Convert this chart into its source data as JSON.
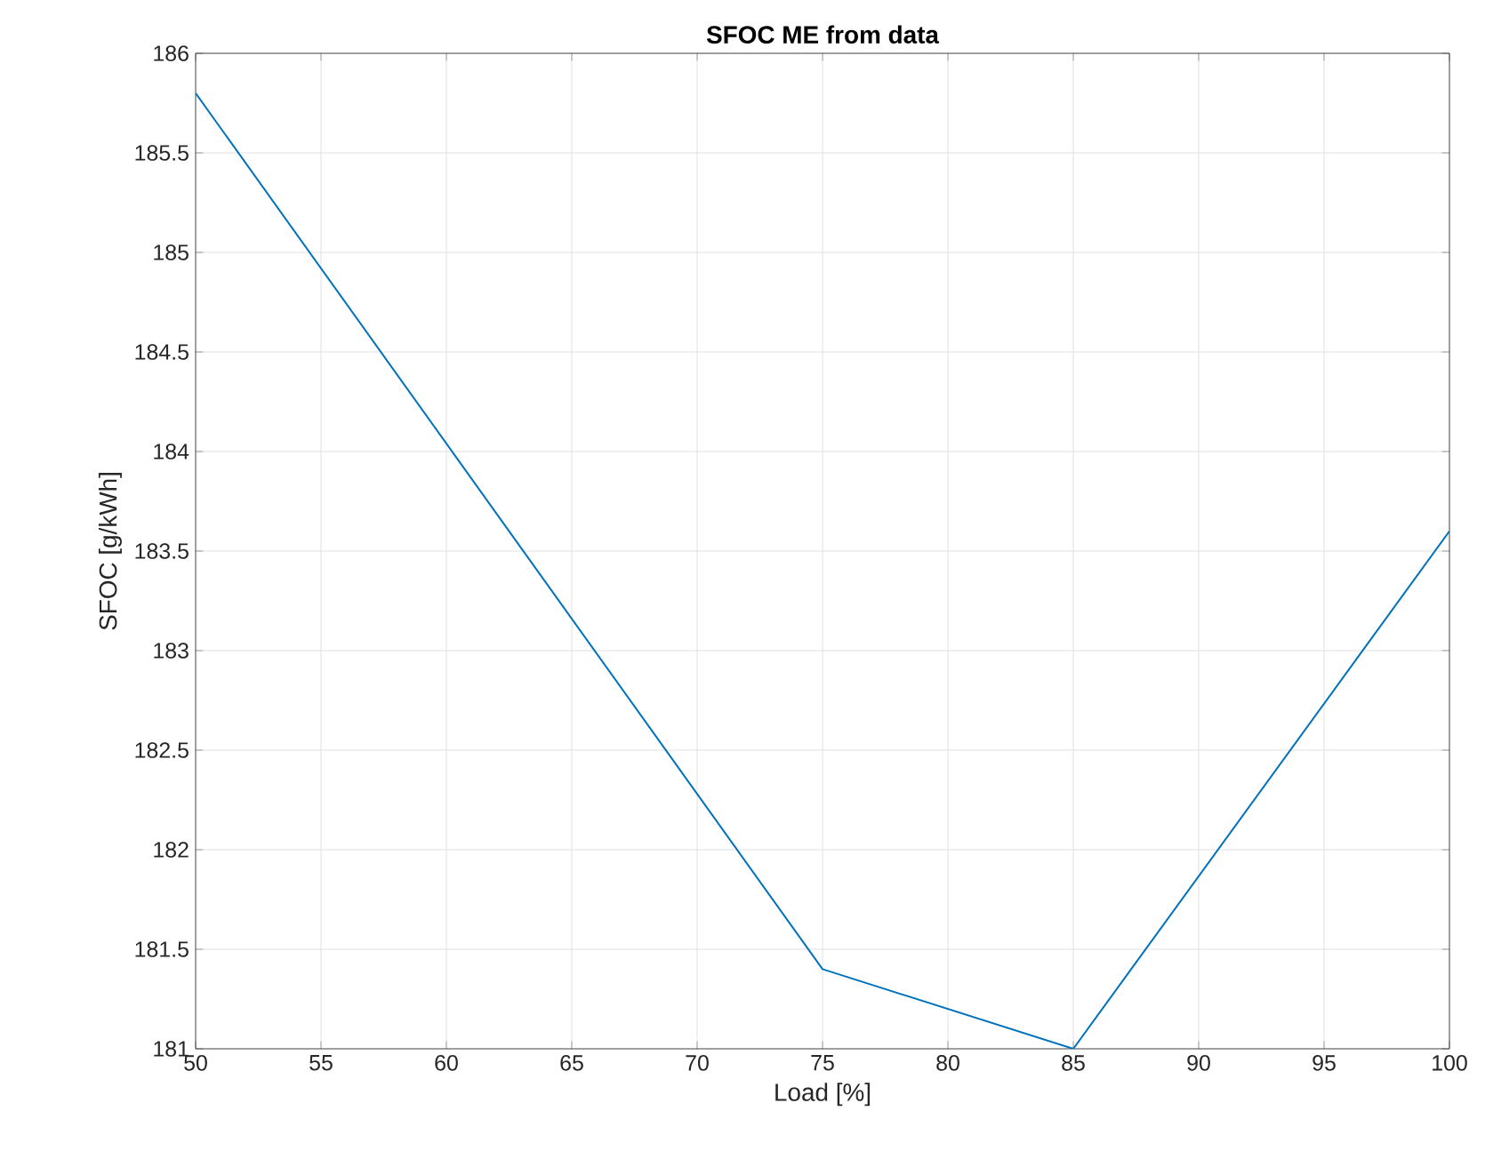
{
  "chart_data": {
    "type": "line",
    "title": "SFOC ME from data",
    "xlabel": "Load [%]",
    "ylabel": "SFOC [g/kWh]",
    "x": [
      50,
      75,
      85,
      100
    ],
    "series": [
      {
        "color": "#0072bd",
        "values": [
          185.8,
          181.4,
          181.0,
          183.6
        ]
      }
    ],
    "xlim": [
      50,
      100
    ],
    "ylim": [
      181,
      186
    ],
    "xticks": [
      50,
      55,
      60,
      65,
      70,
      75,
      80,
      85,
      90,
      95,
      100
    ],
    "yticks": [
      181,
      181.5,
      182,
      182.5,
      183,
      183.5,
      184,
      184.5,
      185,
      185.5,
      186
    ],
    "grid": true
  }
}
